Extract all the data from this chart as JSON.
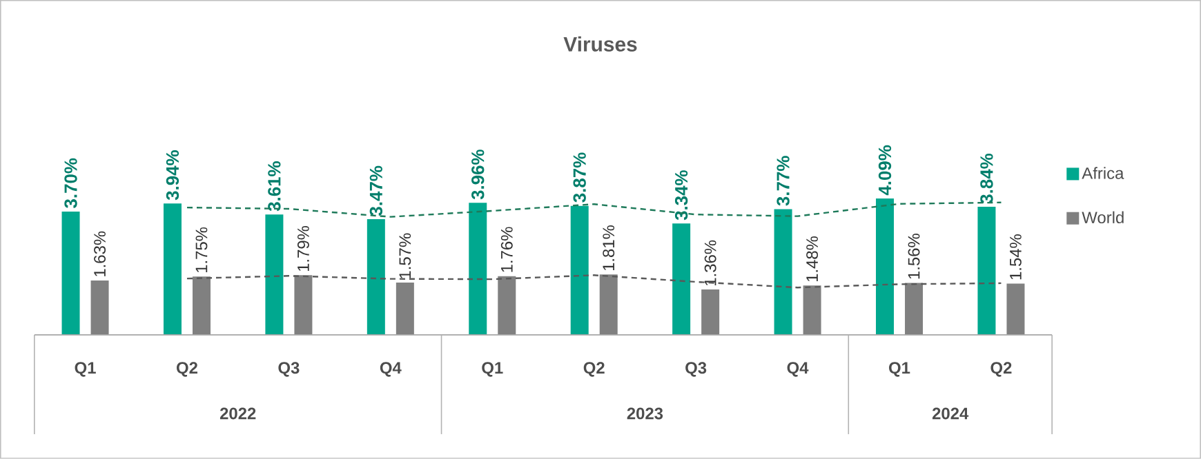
{
  "chart_data": {
    "type": "bar",
    "title": "Viruses",
    "categories": [
      "Q1",
      "Q2",
      "Q3",
      "Q4",
      "Q1",
      "Q2",
      "Q3",
      "Q4",
      "Q1",
      "Q2"
    ],
    "annotations": [
      "2022",
      "2023",
      "2024"
    ],
    "legend": "right",
    "series": [
      {
        "name": "Africa",
        "color": "#00a88f",
        "values": [
          3.7,
          3.94,
          3.61,
          3.47,
          3.96,
          3.87,
          3.34,
          3.77,
          4.09,
          3.84
        ],
        "value_labels": [
          "3.70%",
          "3.94%",
          "3.61%",
          "3.47%",
          "3.96%",
          "3.87%",
          "3.34%",
          "3.77%",
          "4.09%",
          "3.84%"
        ]
      },
      {
        "name": "World",
        "color": "#808080",
        "values": [
          1.63,
          1.75,
          1.79,
          1.57,
          1.76,
          1.81,
          1.36,
          1.48,
          1.56,
          1.54
        ],
        "value_labels": [
          "1.63%",
          "1.75%",
          "1.79%",
          "1.57%",
          "1.76%",
          "1.81%",
          "1.36%",
          "1.48%",
          "1.56%",
          "1.54%"
        ]
      },
      {
        "type": "line",
        "line_style": "dashed",
        "color": "#1e7a5a",
        "values": [
          null,
          3.82,
          3.78,
          3.54,
          3.72,
          3.92,
          3.61,
          3.56,
          3.93,
          3.97
        ]
      },
      {
        "type": "line",
        "line_style": "dashed",
        "color": "#595959",
        "values": [
          null,
          1.69,
          1.77,
          1.68,
          1.67,
          1.79,
          1.59,
          1.42,
          1.52,
          1.55
        ]
      }
    ]
  }
}
